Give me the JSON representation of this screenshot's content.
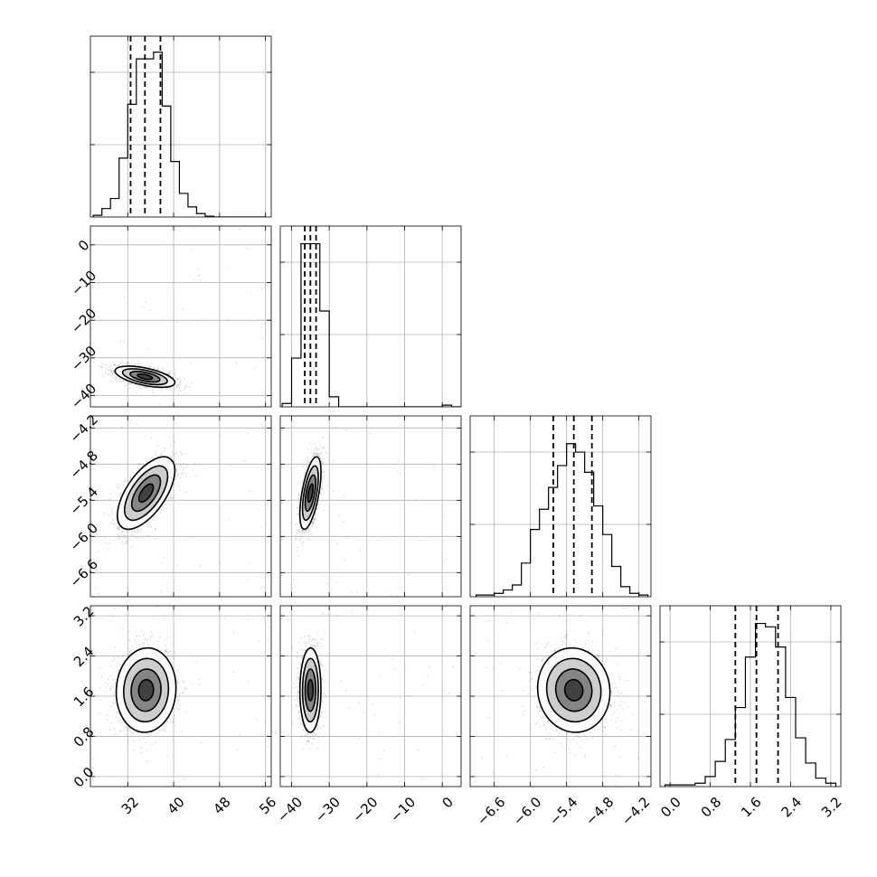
{
  "colors": {
    "line": "#000000",
    "grid": "#b0b0b0",
    "background": "#ffffff"
  },
  "chart_data": {
    "type": "corner",
    "title": "",
    "parameters": [
      {
        "name": "",
        "range": [
          25.5,
          57
        ],
        "ticks": [
          32,
          40,
          48,
          56
        ],
        "tick_labels": [
          "32",
          "40",
          "48",
          "56"
        ],
        "quantiles": [
          32.5,
          35.0,
          37.7
        ],
        "median": 35.0,
        "spread": 2.5
      },
      {
        "name": "",
        "range": [
          -43,
          5
        ],
        "ticks": [
          -40,
          -30,
          -20,
          -10,
          0
        ],
        "tick_labels": [
          "−40",
          "−30",
          "−20",
          "−10",
          "0"
        ],
        "quantiles": [
          -36.5,
          -35.0,
          -33.5
        ],
        "median": -35.0,
        "spread": 1.5
      },
      {
        "name": "",
        "range": [
          -7.0,
          -4.0
        ],
        "ticks": [
          -6.6,
          -6.0,
          -5.4,
          -4.8,
          -4.2
        ],
        "tick_labels": [
          "−6.6",
          "−6.0",
          "−5.4",
          "−4.8",
          "−4.2"
        ],
        "quantiles": [
          -5.62,
          -5.28,
          -4.98
        ],
        "median": -5.28,
        "spread": 0.3
      },
      {
        "name": "",
        "range": [
          -0.2,
          3.4
        ],
        "ticks": [
          0.0,
          0.8,
          1.6,
          2.4,
          3.2
        ],
        "tick_labels": [
          "0.0",
          "0.8",
          "1.6",
          "2.4",
          "3.2"
        ],
        "quantiles": [
          1.3,
          1.72,
          2.15
        ],
        "median": 1.72,
        "spread": 0.4
      }
    ],
    "histograms": [
      {
        "bins": [
          26,
          27.5,
          29,
          30.5,
          32,
          33.5,
          35,
          36.5,
          38,
          39.5,
          41,
          42.5,
          44,
          45.5,
          47,
          48.5,
          50,
          51.5,
          53,
          54.5,
          56
        ],
        "counts": [
          0.01,
          0.05,
          0.11,
          0.35,
          0.67,
          0.94,
          0.94,
          0.98,
          0.66,
          0.33,
          0.14,
          0.06,
          0.02,
          0.005,
          0,
          0,
          0,
          0,
          0,
          0
        ]
      },
      {
        "bins": [
          -42.5,
          -40,
          -37.5,
          -35,
          -32.5,
          -30,
          -27.5,
          -25,
          -22.5,
          -20,
          -17.5,
          -15,
          -12.5,
          -10,
          -7.5,
          -5,
          -2.5,
          0,
          2.5,
          5
        ],
        "counts": [
          0.02,
          0.29,
          0.97,
          0.97,
          0.57,
          0.06,
          0,
          0,
          0,
          0,
          0,
          0,
          0,
          0,
          0,
          0,
          0,
          0.01,
          0
        ]
      },
      {
        "bins": [
          -6.9,
          -6.75,
          -6.6,
          -6.45,
          -6.3,
          -6.15,
          -6.0,
          -5.85,
          -5.7,
          -5.55,
          -5.4,
          -5.25,
          -5.1,
          -4.95,
          -4.8,
          -4.65,
          -4.5,
          -4.35,
          -4.2,
          -4.05
        ],
        "counts": [
          0.01,
          0.01,
          0.02,
          0.04,
          0.07,
          0.2,
          0.4,
          0.52,
          0.65,
          0.78,
          0.91,
          0.86,
          0.74,
          0.54,
          0.37,
          0.18,
          0.06,
          0.02,
          0.01
        ]
      },
      {
        "bins": [
          -0.1,
          0.1,
          0.3,
          0.5,
          0.7,
          0.9,
          1.1,
          1.3,
          1.5,
          1.7,
          1.9,
          2.1,
          2.3,
          2.5,
          2.7,
          2.9,
          3.1,
          3.3
        ],
        "counts": [
          0.01,
          0.01,
          0.01,
          0.02,
          0.06,
          0.15,
          0.28,
          0.47,
          0.77,
          0.97,
          0.95,
          0.83,
          0.53,
          0.29,
          0.14,
          0.05,
          0.02
        ]
      }
    ],
    "pairs": [
      {
        "x": 0,
        "y": 1,
        "center": [
          35.0,
          -35.0
        ],
        "sd": [
          2.6,
          1.4
        ],
        "corr": -0.55
      },
      {
        "x": 0,
        "y": 2,
        "center": [
          35.2,
          -5.28
        ],
        "sd": [
          2.5,
          0.3
        ],
        "corr": 0.62
      },
      {
        "x": 1,
        "y": 2,
        "center": [
          -35.0,
          -5.28
        ],
        "sd": [
          1.4,
          0.3
        ],
        "corr": 0.58
      },
      {
        "x": 0,
        "y": 3,
        "center": [
          35.2,
          1.72
        ],
        "sd": [
          2.6,
          0.42
        ],
        "corr": 0.05
      },
      {
        "x": 1,
        "y": 3,
        "center": [
          -35.0,
          1.72
        ],
        "sd": [
          1.4,
          0.42
        ],
        "corr": 0.02
      },
      {
        "x": 2,
        "y": 3,
        "center": [
          -5.28,
          1.72
        ],
        "sd": [
          0.3,
          0.42
        ],
        "corr": -0.05
      }
    ],
    "contour_levels_sigma": [
      0.5,
      1.0,
      1.5,
      2.0
    ],
    "grid": true,
    "legend": "none"
  }
}
